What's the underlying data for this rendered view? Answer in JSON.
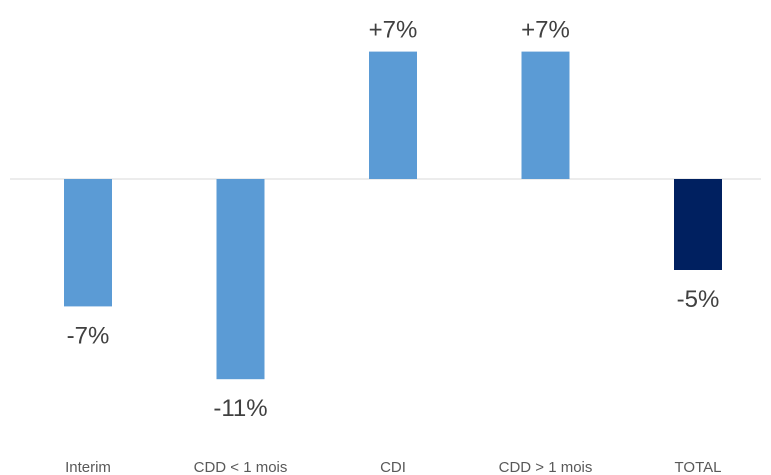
{
  "chart_data": {
    "type": "bar",
    "categories": [
      "Interim",
      "CDD < 1 mois",
      "CDI",
      "CDD > 1 mois",
      "TOTAL"
    ],
    "values": [
      -7,
      -11,
      7,
      7,
      -5
    ],
    "data_labels": [
      "-7%",
      "-11%",
      "+7%",
      "+7%",
      "-5%"
    ],
    "title": "",
    "xlabel": "",
    "ylabel": "",
    "ylim": [
      -11,
      7
    ],
    "grid": false,
    "legend": "none",
    "colors": {
      "default_bar": "#5b9bd5",
      "total_bar": "#002060",
      "zero_line": "#d9d9d9",
      "data_label": "#404040",
      "category_label": "#595959"
    },
    "highlight_category": "TOTAL"
  }
}
